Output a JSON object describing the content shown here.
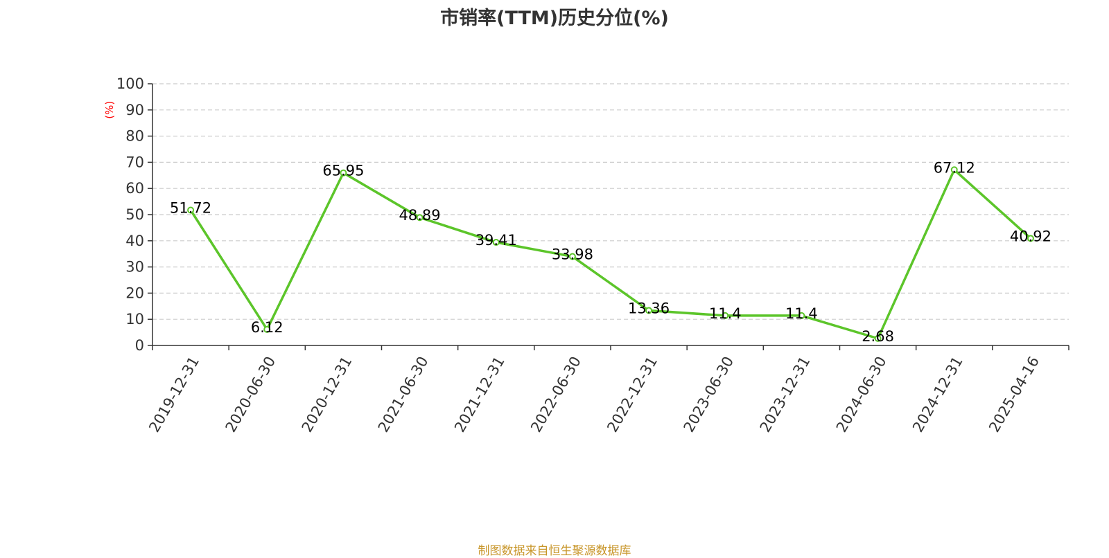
{
  "chart_data": {
    "type": "line",
    "title": "市销率(TTM)历史分位(%)",
    "ylabel": "(%)",
    "xlabel": "",
    "categories": [
      "2019-12-31",
      "2020-06-30",
      "2020-12-31",
      "2021-06-30",
      "2021-12-31",
      "2022-06-30",
      "2022-12-31",
      "2023-06-30",
      "2023-12-31",
      "2024-06-30",
      "2024-12-31",
      "2025-04-16"
    ],
    "series": [
      {
        "values": [
          51.72,
          6.12,
          65.95,
          48.89,
          39.41,
          33.98,
          13.36,
          11.4,
          11.4,
          2.68,
          67.12,
          40.92
        ]
      }
    ],
    "value_labels": [
      "51.72",
      "6.12",
      "65.95",
      "48.89",
      "39.41",
      "33.98",
      "13.36",
      "11.4",
      "11.4",
      "2.68",
      "67.12",
      "40.92"
    ],
    "ylim": [
      0,
      100
    ],
    "yticks": [
      "0",
      "10",
      "20",
      "30",
      "40",
      "50",
      "60",
      "70",
      "80",
      "90",
      "100"
    ],
    "grid": true,
    "legend": "none",
    "colors": {
      "line": "#5cc52a",
      "ylabel": "#ff0000",
      "grid": "#cccccc",
      "axis": "#333333",
      "source": "#c8962a"
    }
  },
  "footer": {
    "source": "制图数据来自恒生聚源数据库"
  }
}
